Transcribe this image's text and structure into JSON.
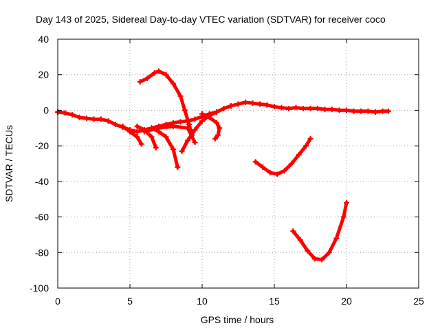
{
  "chart_data": {
    "type": "scatter",
    "title": "Day 143 of 2025, Sidereal Day-to-day VTEC variation (SDTVAR) for receiver coco",
    "xlabel": "GPS time / hours",
    "ylabel": "SDTVAR / TECUs",
    "xlim": [
      0,
      25
    ],
    "ylim": [
      -100,
      40
    ],
    "xticks": [
      "0",
      "5",
      "10",
      "15",
      "20",
      "25"
    ],
    "yticks": [
      "-100",
      "-80",
      "-60",
      "-40",
      "-20",
      "0",
      "20",
      "40"
    ],
    "xtick_values": [
      0,
      5,
      10,
      15,
      20,
      25
    ],
    "ytick_values": [
      -100,
      -80,
      -60,
      -40,
      -20,
      0,
      20,
      40
    ],
    "grid": true,
    "color": "#ff0000",
    "series": [
      {
        "name": "trace-main",
        "x": [
          0.0,
          0.5,
          1.0,
          1.5,
          2.0,
          2.5,
          3.0,
          3.5,
          4.0,
          4.5,
          5.0,
          5.5,
          6.0,
          6.5,
          7.0,
          7.5,
          8.0,
          8.5,
          9.0,
          9.5,
          10.0,
          10.5,
          11.0,
          11.5,
          12.0,
          12.5,
          13.0,
          13.5,
          14.0,
          14.5,
          15.0,
          15.5,
          16.0,
          16.5,
          17.0,
          17.5,
          18.0,
          18.5,
          19.0,
          19.5,
          20.0,
          20.5,
          21.0,
          21.5,
          22.0,
          22.5,
          22.9
        ],
        "y": [
          -1,
          -1.5,
          -2.5,
          -4,
          -4.5,
          -5,
          -5,
          -6,
          -8,
          -9.5,
          -11,
          -12,
          -11,
          -10,
          -9,
          -8,
          -7,
          -6.5,
          -6,
          -5,
          -3.5,
          -2,
          -1,
          1,
          2.5,
          3.5,
          4.5,
          4,
          3.5,
          3,
          2,
          1.5,
          1,
          1.5,
          1,
          1,
          1,
          0.5,
          0.5,
          0,
          0,
          -0.5,
          -0.5,
          -0.5,
          -1,
          -0.5,
          -0.5
        ]
      },
      {
        "name": "trace-upper-arc",
        "x": [
          5.7,
          6.2,
          6.7,
          7.0,
          7.5,
          8.0,
          8.5,
          8.8,
          9.1,
          9.3
        ],
        "y": [
          16,
          18,
          21,
          22,
          20,
          15,
          8,
          0,
          -8,
          -14
        ]
      },
      {
        "name": "trace-branch-a",
        "x": [
          4.5,
          5.0,
          5.5,
          5.8
        ],
        "y": [
          -9,
          -12,
          -15,
          -19
        ]
      },
      {
        "name": "trace-branch-b",
        "x": [
          5.5,
          6.0,
          6.5,
          6.8
        ],
        "y": [
          -9,
          -11,
          -15,
          -21
        ]
      },
      {
        "name": "trace-branch-c",
        "x": [
          6.5,
          7.0,
          7.5,
          8.0,
          8.3
        ],
        "y": [
          -10,
          -12,
          -15,
          -22,
          -32
        ]
      },
      {
        "name": "trace-branch-d",
        "x": [
          8.6,
          9.0,
          9.5,
          10.0,
          10.5,
          11.0
        ],
        "y": [
          -23,
          -17,
          -11,
          -6,
          -3,
          -1
        ]
      },
      {
        "name": "trace-branch-e",
        "x": [
          6.0,
          7.0,
          8.0,
          9.0,
          9.5
        ],
        "y": [
          -12,
          -10,
          -9,
          -10,
          -18
        ]
      },
      {
        "name": "trace-branch-f",
        "x": [
          10.0,
          10.5,
          11.0,
          11.2,
          11.1,
          10.9
        ],
        "y": [
          -2,
          -4,
          -7,
          -10,
          -14,
          -16
        ]
      },
      {
        "name": "trace-lower-u",
        "x": [
          13.7,
          14.2,
          14.7,
          15.2,
          15.7,
          16.2,
          16.7,
          17.2,
          17.5
        ],
        "y": [
          -29,
          -32,
          -35,
          -36,
          -34,
          -30,
          -25,
          -20,
          -16
        ]
      },
      {
        "name": "trace-bottom-u",
        "x": [
          16.3,
          16.8,
          17.3,
          17.8,
          18.3,
          18.8,
          19.3,
          19.8,
          20.0
        ],
        "y": [
          -68,
          -73,
          -79,
          -83.5,
          -84,
          -80,
          -72,
          -60,
          -52
        ]
      }
    ]
  }
}
